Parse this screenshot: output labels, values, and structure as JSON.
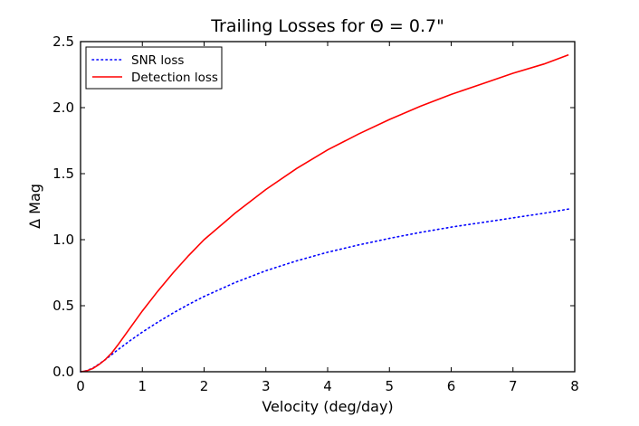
{
  "chart_data": {
    "type": "line",
    "title": "Trailing Losses for Θ = 0.7\"",
    "xlabel": "Velocity (deg/day)",
    "ylabel": "Δ Mag",
    "xlim": [
      0,
      8
    ],
    "ylim": [
      0,
      2.5
    ],
    "x_ticks": [
      "0",
      "1",
      "2",
      "3",
      "4",
      "5",
      "6",
      "7",
      "8"
    ],
    "y_ticks": [
      "0.0",
      "0.5",
      "1.0",
      "1.5",
      "2.0",
      "2.5"
    ],
    "grid": false,
    "legend_position": "top-left",
    "series": [
      {
        "name": "SNR loss",
        "style": "dotted",
        "color": "#0000ff",
        "x": [
          0,
          0.1,
          0.2,
          0.3,
          0.4,
          0.5,
          0.6,
          0.8,
          1.0,
          1.25,
          1.5,
          1.75,
          2.0,
          2.5,
          3.0,
          3.5,
          4.0,
          4.5,
          5.0,
          5.5,
          6.0,
          6.5,
          7.0,
          7.5,
          7.9
        ],
        "y": [
          0,
          0.008,
          0.028,
          0.058,
          0.092,
          0.128,
          0.165,
          0.235,
          0.3,
          0.375,
          0.445,
          0.51,
          0.57,
          0.675,
          0.765,
          0.84,
          0.905,
          0.96,
          1.01,
          1.055,
          1.095,
          1.13,
          1.165,
          1.2,
          1.232
        ]
      },
      {
        "name": "Detection loss",
        "style": "solid",
        "color": "#ff0000",
        "x": [
          0,
          0.1,
          0.2,
          0.3,
          0.4,
          0.5,
          0.6,
          0.8,
          1.0,
          1.25,
          1.5,
          1.75,
          2.0,
          2.5,
          3.0,
          3.5,
          4.0,
          4.5,
          5.0,
          5.5,
          6.0,
          6.5,
          7.0,
          7.5,
          7.9
        ],
        "y": [
          0,
          0.007,
          0.025,
          0.055,
          0.092,
          0.14,
          0.2,
          0.33,
          0.46,
          0.61,
          0.75,
          0.88,
          1.0,
          1.2,
          1.38,
          1.54,
          1.68,
          1.8,
          1.91,
          2.01,
          2.1,
          2.18,
          2.26,
          2.33,
          2.4
        ]
      }
    ]
  }
}
